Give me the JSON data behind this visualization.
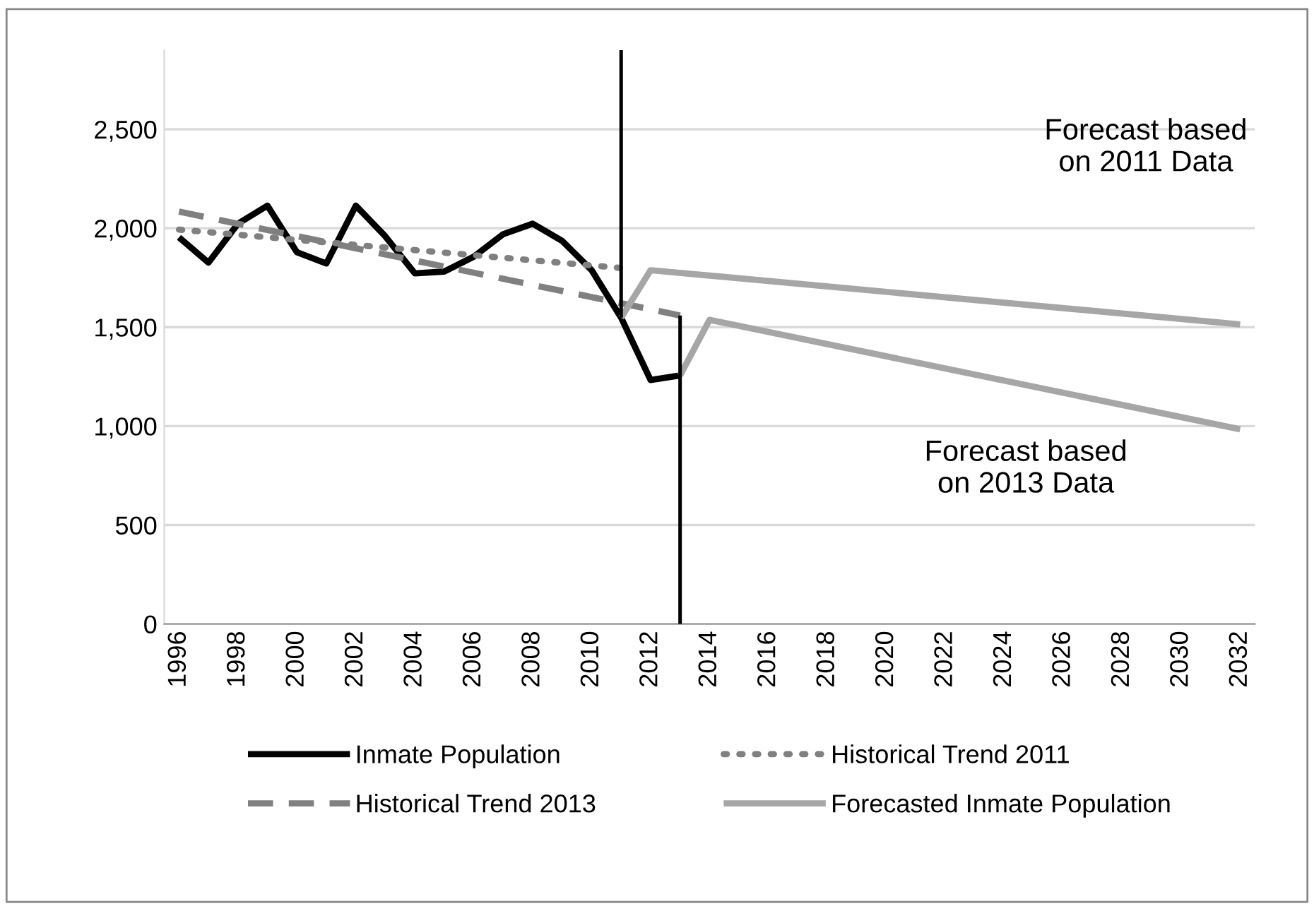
{
  "chart_data": {
    "type": "line",
    "ylim": [
      0,
      2900
    ],
    "yticks": [
      {
        "value": 0,
        "label": "0"
      },
      {
        "value": 500,
        "label": "500"
      },
      {
        "value": 1000,
        "label": "1,000"
      },
      {
        "value": 1500,
        "label": "1,500"
      },
      {
        "value": 2000,
        "label": "2,000"
      },
      {
        "value": 2500,
        "label": "2,500"
      }
    ],
    "xlim": [
      1995.5,
      2032.5
    ],
    "xticks": [
      1996,
      1998,
      2000,
      2002,
      2004,
      2006,
      2008,
      2010,
      2012,
      2014,
      2016,
      2018,
      2020,
      2022,
      2024,
      2026,
      2028,
      2030,
      2032
    ],
    "grid": "y",
    "legend": "bottom",
    "series": [
      {
        "name": "Inmate Population",
        "color": "#000000",
        "line_style": "solid",
        "x": [
          1996,
          1997,
          1998,
          1999,
          2000,
          2001,
          2002,
          2003,
          2004,
          2005,
          2006,
          2007,
          2008,
          2009,
          2010,
          2011,
          2012,
          2013
        ],
        "values": [
          1954,
          1826,
          2023,
          2114,
          1879,
          1822,
          2114,
          1959,
          1772,
          1781,
          1856,
          1970,
          2023,
          1936,
          1788,
          1548,
          1233,
          1256
        ]
      },
      {
        "name": "Historical Trend 2011",
        "color": "#808080",
        "line_style": "dotted",
        "x": [
          1996,
          2011
        ],
        "values": [
          1993,
          1799
        ]
      },
      {
        "name": "Historical Trend 2013",
        "color": "#808080",
        "line_style": "dashed",
        "x": [
          1996,
          2013
        ],
        "values": [
          2084,
          1559
        ]
      },
      {
        "name": "Forecasted Inmate Population",
        "color": "#a6a6a6",
        "line_style": "solid",
        "x": [
          2011,
          2012,
          2032,
          null,
          2013,
          2014,
          2032
        ],
        "values": [
          1548,
          1788,
          1514,
          null,
          1256,
          1537,
          984
        ]
      },
      {
        "color": "#000000",
        "line_style": "solid",
        "x": [
          2011,
          2011
        ],
        "values": [
          1548,
          2900
        ]
      },
      {
        "color": "#000000",
        "line_style": "solid",
        "x": [
          2013,
          2013
        ],
        "values": [
          0,
          1559
        ]
      }
    ],
    "annotations": [
      "Forecast based\non 2011 Data",
      "Forecast based\non 2013 Data"
    ]
  }
}
